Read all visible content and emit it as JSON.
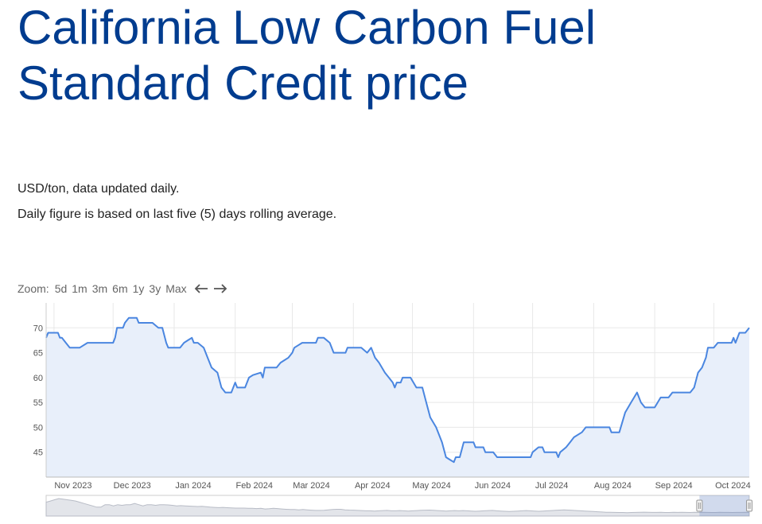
{
  "page": {
    "title_line1": "California Low Carbon Fuel",
    "title_line2": "Standard Credit price",
    "desc1": "USD/ton, data updated daily.",
    "desc2": "Daily figure is based on last five (5) days rolling average."
  },
  "zoom": {
    "label": "Zoom:",
    "buttons": [
      "5d",
      "1m",
      "3m",
      "6m",
      "1y",
      "3y",
      "Max"
    ]
  },
  "colors": {
    "title": "#003c8f",
    "line": "#4a86e0",
    "fill": "#e8effa"
  },
  "chart_data": {
    "type": "area",
    "title": "",
    "xlabel": "",
    "ylabel": "",
    "ylim": [
      40,
      75
    ],
    "yticks": [
      45,
      50,
      55,
      60,
      65,
      70
    ],
    "xlim": [
      "2023-10-28",
      "2024-10-19"
    ],
    "xticks": [
      {
        "date": "2023-11-01",
        "label": "Nov 2023"
      },
      {
        "date": "2023-12-01",
        "label": "Dec 2023"
      },
      {
        "date": "2024-01-01",
        "label": "Jan 2024"
      },
      {
        "date": "2024-02-01",
        "label": "Feb 2024"
      },
      {
        "date": "2024-03-01",
        "label": "Mar 2024"
      },
      {
        "date": "2024-04-01",
        "label": "Apr 2024"
      },
      {
        "date": "2024-05-01",
        "label": "May 2024"
      },
      {
        "date": "2024-06-01",
        "label": "Jun 2024"
      },
      {
        "date": "2024-07-01",
        "label": "Jul 2024"
      },
      {
        "date": "2024-08-01",
        "label": "Aug 2024"
      },
      {
        "date": "2024-09-01",
        "label": "Sep 2024"
      },
      {
        "date": "2024-10-01",
        "label": "Oct 2024"
      }
    ],
    "grid": true,
    "legend": "none",
    "series": [
      {
        "points": [
          [
            "2023-10-28",
            68
          ],
          [
            "2023-10-29",
            69
          ],
          [
            "2023-11-03",
            69
          ],
          [
            "2023-11-04",
            68
          ],
          [
            "2023-11-05",
            68
          ],
          [
            "2023-11-07",
            67
          ],
          [
            "2023-11-09",
            66
          ],
          [
            "2023-11-14",
            66
          ],
          [
            "2023-11-18",
            67
          ],
          [
            "2023-11-29",
            67
          ],
          [
            "2023-12-01",
            67
          ],
          [
            "2023-12-02",
            68
          ],
          [
            "2023-12-03",
            70
          ],
          [
            "2023-12-06",
            70
          ],
          [
            "2023-12-07",
            71
          ],
          [
            "2023-12-09",
            72
          ],
          [
            "2023-12-13",
            72
          ],
          [
            "2023-12-14",
            71
          ],
          [
            "2023-12-21",
            71
          ],
          [
            "2023-12-24",
            70
          ],
          [
            "2023-12-26",
            70
          ],
          [
            "2023-12-28",
            67
          ],
          [
            "2023-12-29",
            66
          ],
          [
            "2024-01-04",
            66
          ],
          [
            "2024-01-06",
            67
          ],
          [
            "2024-01-08",
            67.5
          ],
          [
            "2024-01-10",
            68
          ],
          [
            "2024-01-11",
            67
          ],
          [
            "2024-01-13",
            67
          ],
          [
            "2024-01-16",
            66
          ],
          [
            "2024-01-18",
            64
          ],
          [
            "2024-01-20",
            62
          ],
          [
            "2024-01-23",
            61
          ],
          [
            "2024-01-25",
            58
          ],
          [
            "2024-01-27",
            57
          ],
          [
            "2024-01-30",
            57
          ],
          [
            "2024-02-01",
            59
          ],
          [
            "2024-02-02",
            58
          ],
          [
            "2024-02-06",
            58
          ],
          [
            "2024-02-08",
            60
          ],
          [
            "2024-02-10",
            60.5
          ],
          [
            "2024-02-14",
            61
          ],
          [
            "2024-02-15",
            60
          ],
          [
            "2024-02-16",
            62
          ],
          [
            "2024-02-22",
            62
          ],
          [
            "2024-02-24",
            63
          ],
          [
            "2024-02-26",
            63.5
          ],
          [
            "2024-02-28",
            64
          ],
          [
            "2024-03-01",
            65
          ],
          [
            "2024-03-02",
            66
          ],
          [
            "2024-03-04",
            66.5
          ],
          [
            "2024-03-06",
            67
          ],
          [
            "2024-03-13",
            67
          ],
          [
            "2024-03-14",
            68
          ],
          [
            "2024-03-17",
            68
          ],
          [
            "2024-03-20",
            67
          ],
          [
            "2024-03-22",
            65
          ],
          [
            "2024-03-28",
            65
          ],
          [
            "2024-03-29",
            66
          ],
          [
            "2024-04-05",
            66
          ],
          [
            "2024-04-08",
            65
          ],
          [
            "2024-04-10",
            66
          ],
          [
            "2024-04-12",
            64
          ],
          [
            "2024-04-14",
            63
          ],
          [
            "2024-04-17",
            61
          ],
          [
            "2024-04-19",
            60
          ],
          [
            "2024-04-21",
            59
          ],
          [
            "2024-04-22",
            58
          ],
          [
            "2024-04-23",
            59
          ],
          [
            "2024-04-25",
            59
          ],
          [
            "2024-04-26",
            60
          ],
          [
            "2024-04-30",
            60
          ],
          [
            "2024-05-03",
            58
          ],
          [
            "2024-05-06",
            58
          ],
          [
            "2024-05-08",
            55
          ],
          [
            "2024-05-10",
            52
          ],
          [
            "2024-05-13",
            50
          ],
          [
            "2024-05-16",
            47
          ],
          [
            "2024-05-18",
            44
          ],
          [
            "2024-05-20",
            43.5
          ],
          [
            "2024-05-22",
            43
          ],
          [
            "2024-05-23",
            44
          ],
          [
            "2024-05-25",
            44
          ],
          [
            "2024-05-27",
            47
          ],
          [
            "2024-06-01",
            47
          ],
          [
            "2024-06-02",
            46
          ],
          [
            "2024-06-06",
            46
          ],
          [
            "2024-06-07",
            45
          ],
          [
            "2024-06-11",
            45
          ],
          [
            "2024-06-13",
            44
          ],
          [
            "2024-06-30",
            44
          ],
          [
            "2024-07-01",
            45
          ],
          [
            "2024-07-04",
            46
          ],
          [
            "2024-07-06",
            46
          ],
          [
            "2024-07-07",
            45
          ],
          [
            "2024-07-13",
            45
          ],
          [
            "2024-07-14",
            44
          ],
          [
            "2024-07-15",
            45
          ],
          [
            "2024-07-18",
            46
          ],
          [
            "2024-07-20",
            47
          ],
          [
            "2024-07-22",
            48
          ],
          [
            "2024-07-26",
            49
          ],
          [
            "2024-07-28",
            50
          ],
          [
            "2024-08-09",
            50
          ],
          [
            "2024-08-10",
            49
          ],
          [
            "2024-08-14",
            49
          ],
          [
            "2024-08-17",
            53
          ],
          [
            "2024-08-20",
            55
          ],
          [
            "2024-08-23",
            57
          ],
          [
            "2024-08-25",
            55
          ],
          [
            "2024-08-27",
            54
          ],
          [
            "2024-09-01",
            54
          ],
          [
            "2024-09-04",
            56
          ],
          [
            "2024-09-08",
            56
          ],
          [
            "2024-09-10",
            57
          ],
          [
            "2024-09-19",
            57
          ],
          [
            "2024-09-21",
            58
          ],
          [
            "2024-09-23",
            61
          ],
          [
            "2024-09-25",
            62
          ],
          [
            "2024-09-27",
            64
          ],
          [
            "2024-09-28",
            66
          ],
          [
            "2024-10-01",
            66
          ],
          [
            "2024-10-03",
            67
          ],
          [
            "2024-10-10",
            67
          ],
          [
            "2024-10-11",
            68
          ],
          [
            "2024-10-12",
            67
          ],
          [
            "2024-10-14",
            69
          ],
          [
            "2024-10-17",
            69
          ],
          [
            "2024-10-19",
            70
          ]
        ]
      }
    ],
    "navigator": {
      "start_date": "2011-01-01",
      "end_date": "2024-10-19",
      "selected_start": "2023-10-28",
      "selected_end": "2024-10-19",
      "overview_values": [
        100,
        110,
        120,
        130,
        125,
        120,
        115,
        110,
        100,
        90,
        80,
        70,
        60,
        60,
        80,
        80,
        70,
        80,
        75,
        80,
        80,
        90,
        80,
        70,
        80,
        80,
        75,
        80,
        80,
        78,
        75,
        70,
        72,
        70,
        68,
        66,
        65,
        67,
        63,
        60,
        58,
        56,
        58,
        55,
        53,
        52,
        52,
        52,
        50,
        50,
        48,
        50,
        45,
        47,
        50,
        48,
        45,
        42,
        40,
        40,
        38,
        40,
        38,
        35,
        33,
        33,
        34,
        38,
        40,
        42,
        42,
        38,
        36,
        35,
        33,
        32,
        30,
        30,
        28,
        30,
        32,
        33,
        30,
        30,
        32,
        30,
        28,
        30,
        32,
        34,
        35,
        36,
        34,
        32,
        30,
        28,
        30,
        32,
        30,
        32,
        30,
        28,
        26,
        28,
        30,
        32,
        33,
        30,
        28,
        26,
        24,
        26,
        28,
        30,
        32,
        30,
        28,
        26,
        28,
        30,
        32,
        34,
        36,
        38,
        36,
        34,
        32,
        30,
        28,
        26,
        24,
        22,
        20,
        18,
        18,
        17,
        16,
        16,
        15,
        16,
        17,
        18,
        19,
        18,
        17,
        17,
        18,
        16,
        16,
        18,
        17,
        18,
        17,
        16,
        18,
        17,
        18,
        17,
        16,
        16,
        18,
        17,
        17,
        16,
        17,
        17,
        18,
        17
      ]
    }
  }
}
